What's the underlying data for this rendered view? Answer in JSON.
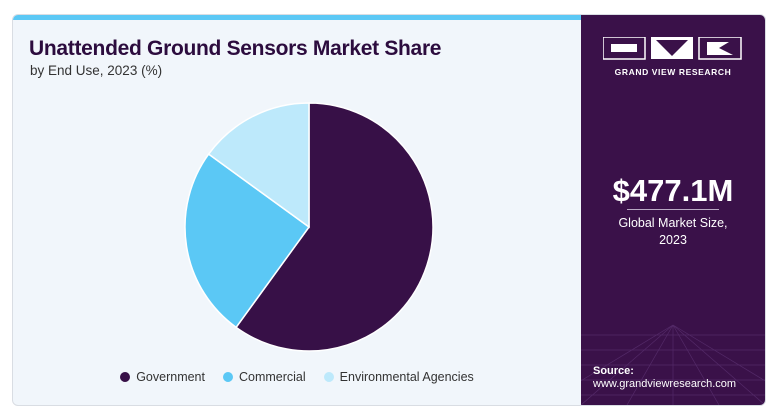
{
  "chart_data": {
    "type": "pie",
    "title": "Unattended Ground Sensors Market Share",
    "subtitle": "by End Use, 2023 (%)",
    "categories": [
      "Government",
      "Commercial",
      "Environmental Agencies"
    ],
    "values": [
      60,
      25,
      15
    ],
    "colors": [
      "#371047",
      "#5bc8f5",
      "#bde9fb"
    ],
    "legend_position": "bottom"
  },
  "sidebar": {
    "brand": "GRAND VIEW RESEARCH",
    "market_value": "$477.1M",
    "market_label_line1": "Global Market Size,",
    "market_label_line2": "2023",
    "source_label": "Source:",
    "source_url": "www.grandviewresearch.com"
  }
}
